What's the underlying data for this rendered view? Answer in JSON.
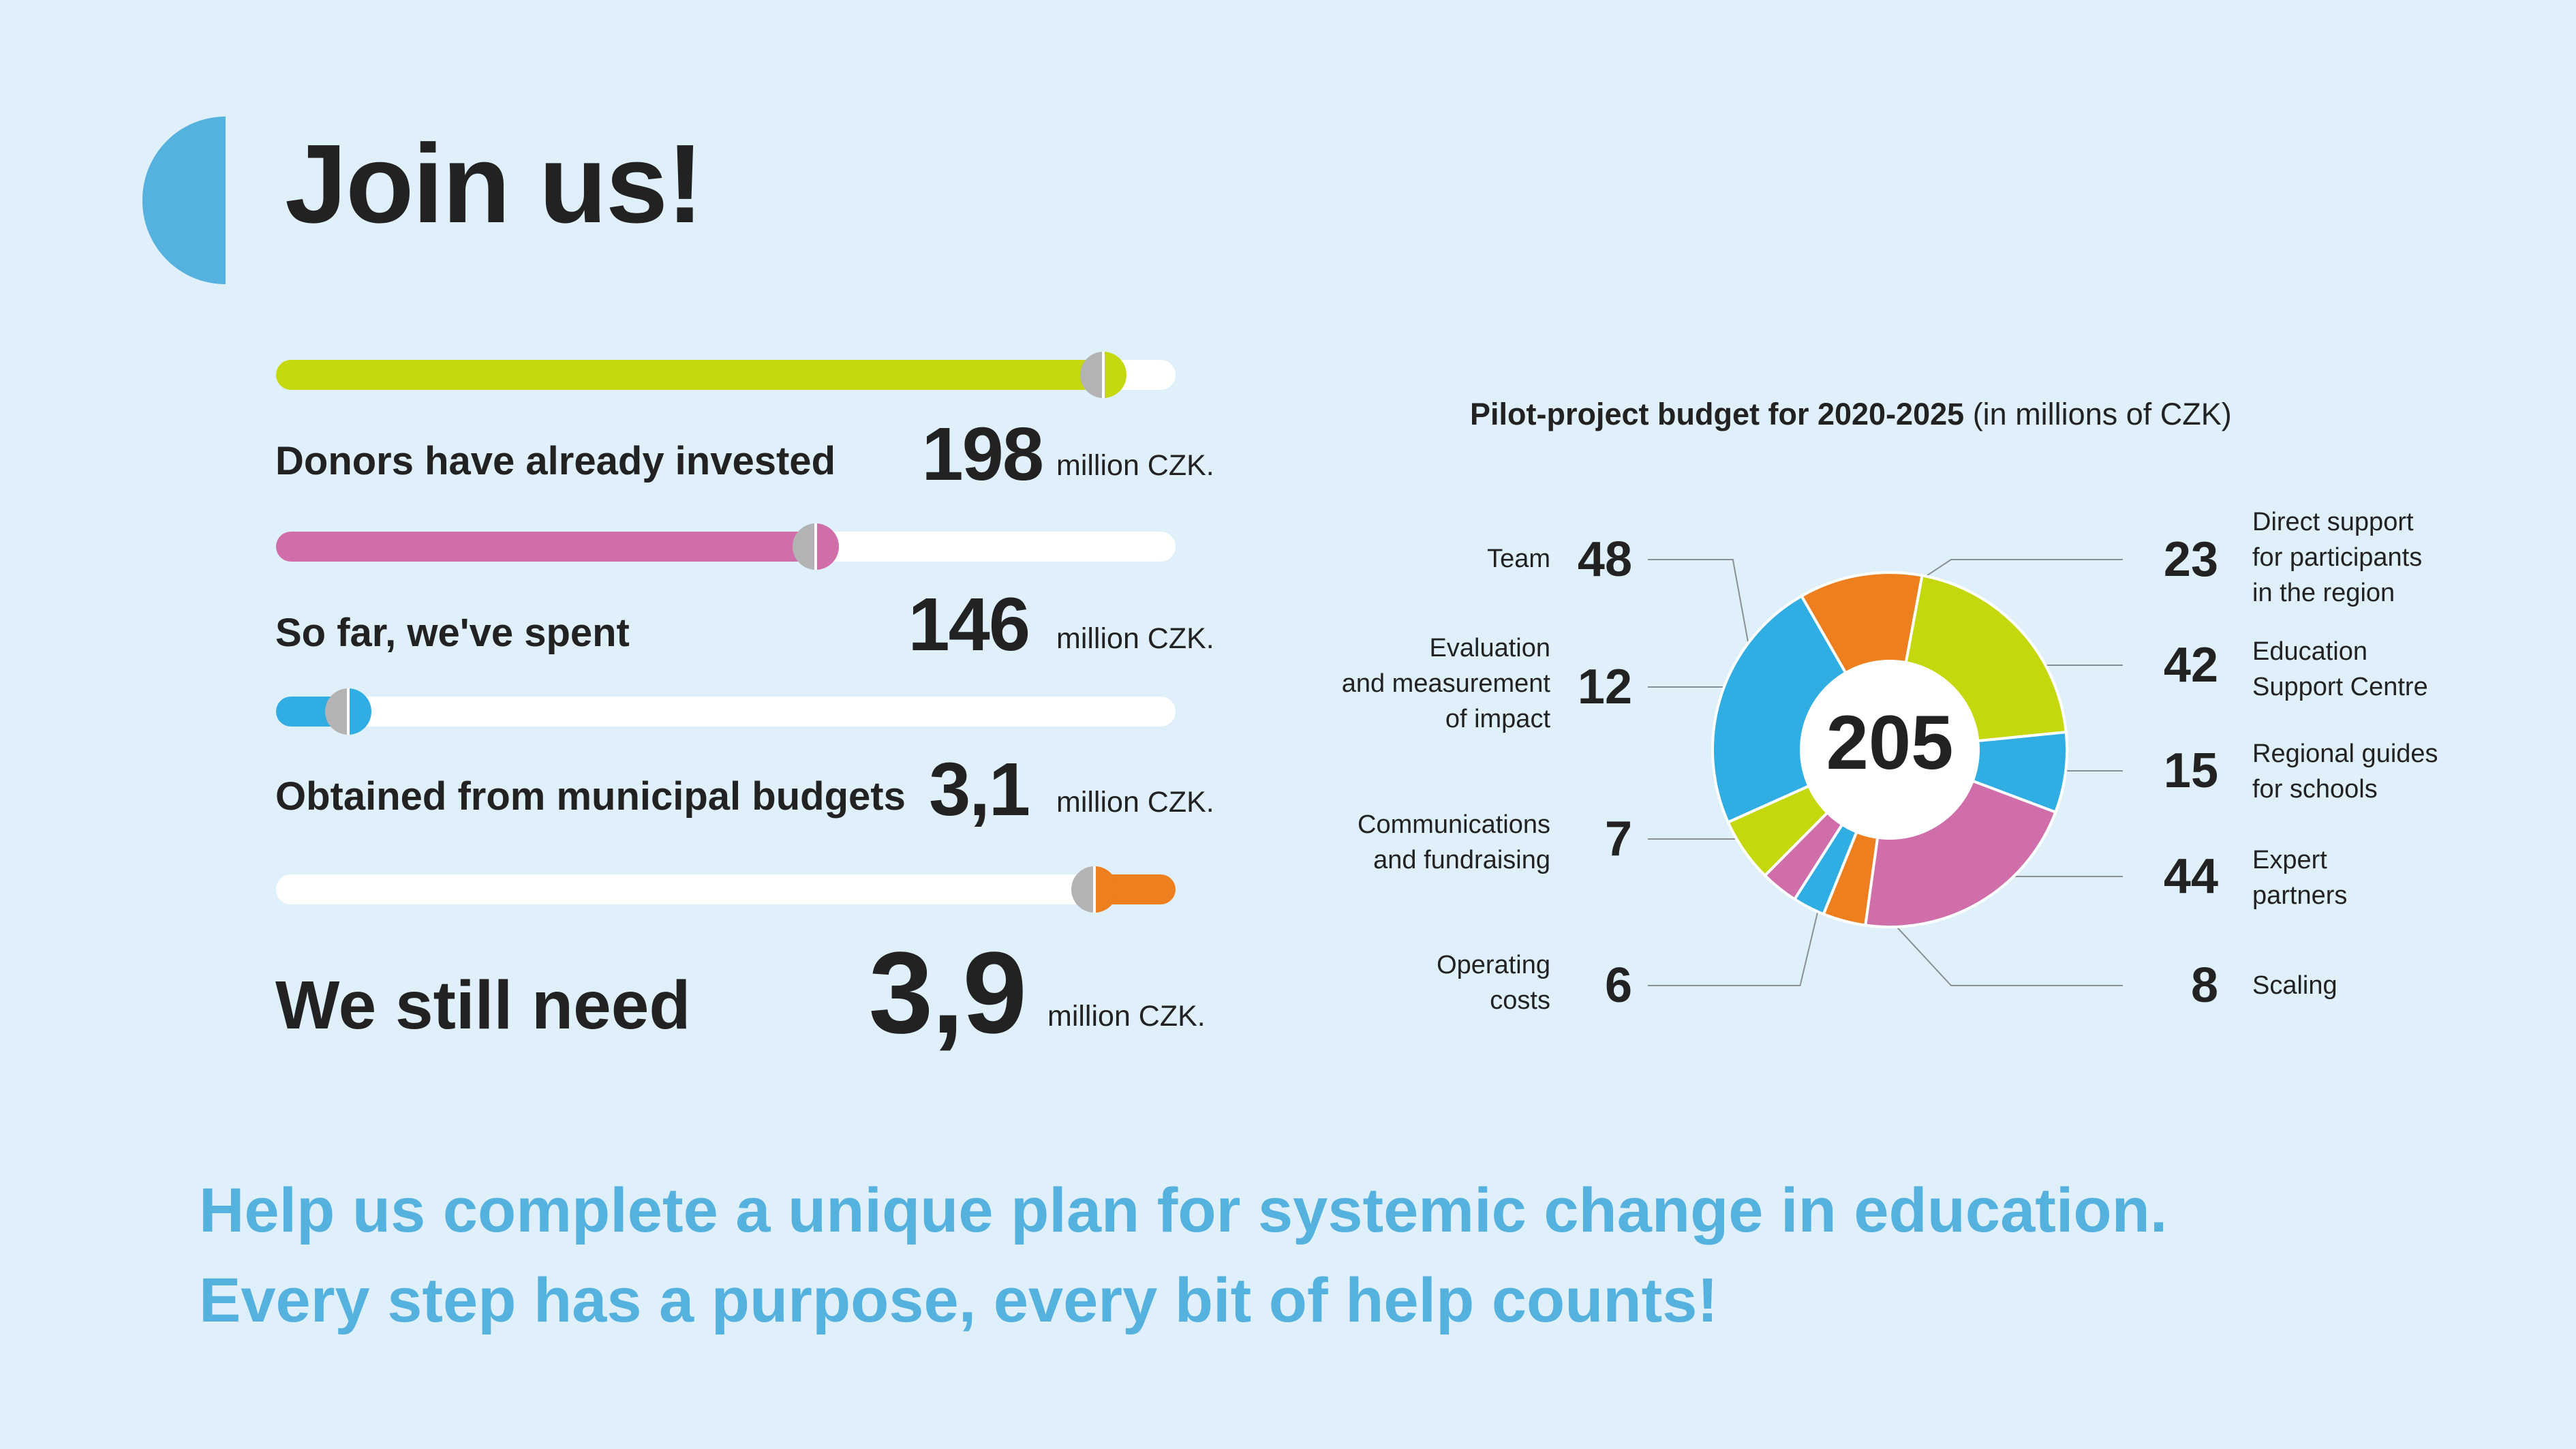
{
  "page": {
    "title": "Join us!"
  },
  "colors": {
    "background": "#dff0fa",
    "accent_blue": "#55b1dd",
    "lime": "#c5d70d",
    "pink": "#d06ea9",
    "blue": "#30aee4",
    "orange": "#ee7f1e",
    "knob_grey": "#b3b3b3",
    "text": "#222222"
  },
  "stats": [
    {
      "label": "Donors have already invested",
      "number": "198",
      "unit": "million CZK.",
      "progress": 0.92,
      "color": "#c5d70d",
      "fill_from": "left"
    },
    {
      "label": "So far, we've spent",
      "number": "146",
      "unit": "million CZK.",
      "progress": 0.6,
      "color": "#d06ea9",
      "fill_from": "left"
    },
    {
      "label": "Obtained from municipal budgets",
      "number": "3,1",
      "unit": "million CZK.",
      "progress": 0.08,
      "color": "#30aee4",
      "fill_from": "left"
    },
    {
      "label": "We still need",
      "number": "3,9",
      "unit": "million CZK.",
      "progress": 0.09,
      "color": "#ee7f1e",
      "fill_from": "right"
    }
  ],
  "chart_data": {
    "type": "pie",
    "title": "Pilot-project budget for 2020-2025",
    "subtitle": "(in millions of CZK)",
    "total_label": "205",
    "slices": [
      {
        "label": "Direct support for participants in the region",
        "lines": [
          "Direct support",
          "for participants",
          "in the region"
        ],
        "value": 23,
        "color": "#ee7f1e"
      },
      {
        "label": "Education Support Centre",
        "lines": [
          "Education",
          "Support Centre"
        ],
        "value": 42,
        "color": "#c5d70d"
      },
      {
        "label": "Regional guides for schools",
        "lines": [
          "Regional guides",
          "for schools"
        ],
        "value": 15,
        "color": "#30aee4"
      },
      {
        "label": "Expert partners",
        "lines": [
          "Expert",
          "partners"
        ],
        "value": 44,
        "color": "#d06ea9"
      },
      {
        "label": "Scaling",
        "lines": [
          "Scaling"
        ],
        "value": 8,
        "color": "#ee7f1e"
      },
      {
        "label": "Operating costs",
        "lines": [
          "Operating",
          "costs"
        ],
        "value": 6,
        "color": "#30aee4"
      },
      {
        "label": "Communications and fundraising",
        "lines": [
          "Communications",
          "and fundraising"
        ],
        "value": 7,
        "color": "#d06ea9"
      },
      {
        "label": "Evaluation and measurement of impact",
        "lines": [
          "Evaluation",
          "and measurement",
          "of impact"
        ],
        "value": 12,
        "color": "#c5d70d"
      },
      {
        "label": "Team",
        "lines": [
          "Team"
        ],
        "value": 48,
        "color": "#30aee4"
      }
    ]
  },
  "footer": {
    "line1": "Help us complete a unique plan for systemic change in education.",
    "line2": "Every step has a purpose, every bit of help counts!"
  }
}
